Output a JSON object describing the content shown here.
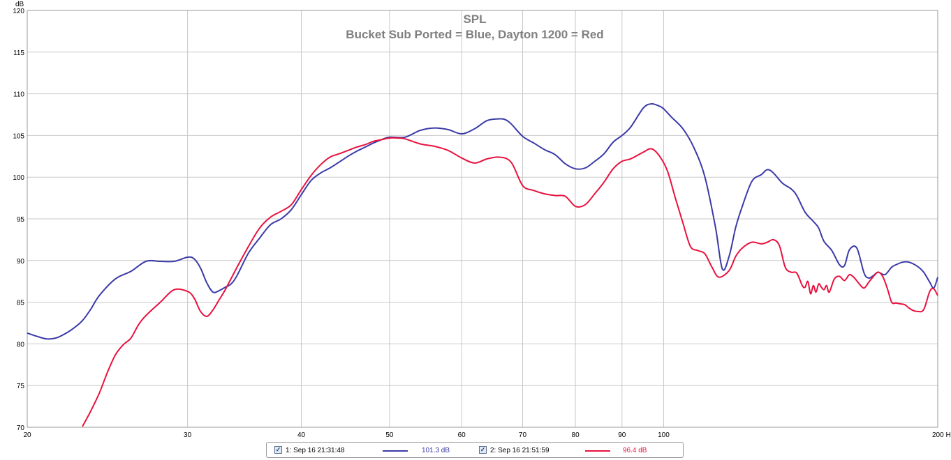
{
  "chart_data": {
    "type": "line",
    "title": "SPL",
    "subtitle": "Bucket Sub Ported = Blue, Dayton 1200 = Red",
    "ylabel": "dB",
    "xlabel_unit": "Hz",
    "x_scale": "log",
    "xlim": [
      20,
      200
    ],
    "ylim": [
      70,
      120
    ],
    "grid": true,
    "x_ticks": [
      {
        "value": 20,
        "label": "20"
      },
      {
        "value": 30,
        "label": "30"
      },
      {
        "value": 40,
        "label": "40"
      },
      {
        "value": 50,
        "label": "50"
      },
      {
        "value": 60,
        "label": "60"
      },
      {
        "value": 70,
        "label": "70"
      },
      {
        "value": 80,
        "label": "80"
      },
      {
        "value": 90,
        "label": "90"
      },
      {
        "value": 100,
        "label": "100"
      },
      {
        "value": 200,
        "label": "200 Hz"
      }
    ],
    "y_ticks": [
      {
        "value": 70,
        "label": "70"
      },
      {
        "value": 75,
        "label": "75"
      },
      {
        "value": 80,
        "label": "80"
      },
      {
        "value": 85,
        "label": "85"
      },
      {
        "value": 90,
        "label": "90"
      },
      {
        "value": 95,
        "label": "95"
      },
      {
        "value": 100,
        "label": "100"
      },
      {
        "value": 105,
        "label": "105"
      },
      {
        "value": 110,
        "label": "110"
      },
      {
        "value": 115,
        "label": "115"
      },
      {
        "value": 120,
        "label": "120"
      }
    ],
    "series": [
      {
        "color": "#3a3aa8",
        "x": [
          20,
          20.5,
          21,
          21.5,
          22,
          22.5,
          23,
          23.5,
          24,
          25,
          26,
          27,
          28,
          29,
          30,
          30.5,
          31,
          31.5,
          32,
          32.5,
          33,
          33.5,
          34,
          35,
          36,
          37,
          38,
          39,
          40,
          41,
          42,
          43,
          44,
          45,
          46,
          47,
          48,
          49,
          50,
          52,
          54,
          56,
          58,
          60,
          62,
          64,
          66,
          67,
          68,
          70,
          72,
          74,
          76,
          78,
          80,
          82,
          84,
          86,
          88,
          90,
          92,
          95,
          97,
          99,
          100,
          102,
          105,
          108,
          111,
          114,
          116,
          118,
          120,
          122,
          125,
          128,
          130,
          132,
          135,
          138,
          140,
          143,
          146,
          148,
          150,
          153,
          156,
          158,
          160,
          163,
          166,
          168,
          170,
          172,
          175,
          178,
          180,
          183,
          186,
          190,
          193,
          196,
          198,
          200
        ],
        "y": [
          81.3,
          80.9,
          80.6,
          80.7,
          81.2,
          81.9,
          82.8,
          84.2,
          85.8,
          87.8,
          88.7,
          89.9,
          89.9,
          89.9,
          90.4,
          90.2,
          89.1,
          87.3,
          86.2,
          86.4,
          86.8,
          87.2,
          88.2,
          90.9,
          92.7,
          94.3,
          95.0,
          96.1,
          97.9,
          99.6,
          100.5,
          101.1,
          101.8,
          102.5,
          103.1,
          103.6,
          104.1,
          104.5,
          104.8,
          104.8,
          105.6,
          105.9,
          105.7,
          105.2,
          105.8,
          106.8,
          107.0,
          106.9,
          106.4,
          104.9,
          104.1,
          103.3,
          102.7,
          101.6,
          101.0,
          101.1,
          101.9,
          102.8,
          104.2,
          105.0,
          106.0,
          108.3,
          108.8,
          108.5,
          108.2,
          107.2,
          105.8,
          103.5,
          100.0,
          94.0,
          89.0,
          90.5,
          94.0,
          96.5,
          99.5,
          100.3,
          100.9,
          100.5,
          99.3,
          98.6,
          97.8,
          95.8,
          94.7,
          93.9,
          92.3,
          91.2,
          89.5,
          89.4,
          91.3,
          91.5,
          88.5,
          87.9,
          88.2,
          88.6,
          88.3,
          89.2,
          89.5,
          89.8,
          89.8,
          89.3,
          88.6,
          87.4,
          86.7,
          88.0
        ]
      },
      {
        "color": "#e8123e",
        "x": [
          23,
          23.5,
          24,
          24.5,
          25,
          25.5,
          26,
          26.5,
          27,
          28,
          29,
          30,
          30.5,
          31,
          31.5,
          32,
          32.5,
          33,
          34,
          35,
          36,
          37,
          38,
          39,
          40,
          41,
          42,
          43,
          44,
          45,
          46,
          47,
          48,
          49,
          50,
          51,
          52,
          54,
          56,
          58,
          60,
          62,
          64,
          66,
          68,
          70,
          72,
          74,
          76,
          78,
          80,
          82,
          84,
          86,
          88,
          90,
          92,
          95,
          97,
          99,
          101,
          103,
          105,
          107,
          109,
          111,
          113,
          115,
          118,
          120,
          122,
          125,
          128,
          130,
          132,
          134,
          136,
          138,
          140,
          142,
          143,
          144,
          145,
          146,
          147,
          148,
          149,
          150,
          151,
          152,
          154,
          156,
          158,
          160,
          162,
          164,
          166,
          168,
          170,
          172,
          174,
          176,
          178,
          180,
          182,
          184,
          186,
          188,
          190,
          193,
          196,
          198,
          200
        ],
        "y": [
          70.1,
          72.0,
          74.1,
          76.6,
          78.7,
          79.9,
          80.7,
          82.3,
          83.4,
          85.0,
          86.5,
          86.3,
          85.5,
          83.9,
          83.3,
          84.1,
          85.3,
          86.5,
          89.2,
          91.7,
          93.9,
          95.2,
          95.9,
          96.7,
          98.5,
          100.2,
          101.5,
          102.4,
          102.8,
          103.2,
          103.6,
          103.9,
          104.3,
          104.5,
          104.7,
          104.7,
          104.6,
          104.0,
          103.7,
          103.2,
          102.3,
          101.7,
          102.2,
          102.4,
          101.8,
          99.0,
          98.4,
          98.0,
          97.8,
          97.7,
          96.5,
          96.7,
          98.0,
          99.4,
          101.0,
          101.9,
          102.2,
          103.0,
          103.4,
          102.5,
          100.7,
          97.5,
          94.5,
          91.7,
          91.2,
          90.8,
          89.2,
          88.0,
          88.8,
          90.5,
          91.5,
          92.2,
          92.0,
          92.2,
          92.5,
          91.8,
          89.2,
          88.6,
          88.5,
          87.0,
          86.8,
          87.5,
          86.0,
          87.0,
          86.2,
          87.2,
          86.8,
          86.5,
          87.0,
          86.2,
          87.8,
          88.1,
          87.6,
          88.3,
          87.9,
          87.2,
          86.7,
          87.4,
          88.1,
          88.6,
          88.1,
          86.7,
          85.0,
          84.9,
          84.8,
          84.7,
          84.3,
          84.0,
          83.9,
          84.1,
          86.3,
          86.6,
          85.8
        ]
      }
    ]
  },
  "legend": {
    "items": [
      {
        "label": "1: Sep 16 21:31:48",
        "value": "101.3 dB",
        "color": "#3a3aa8",
        "checked": true
      },
      {
        "label": "2: Sep 16 21:51:59",
        "value": "96.4 dB",
        "color": "#e8123e",
        "checked": true
      }
    ]
  }
}
